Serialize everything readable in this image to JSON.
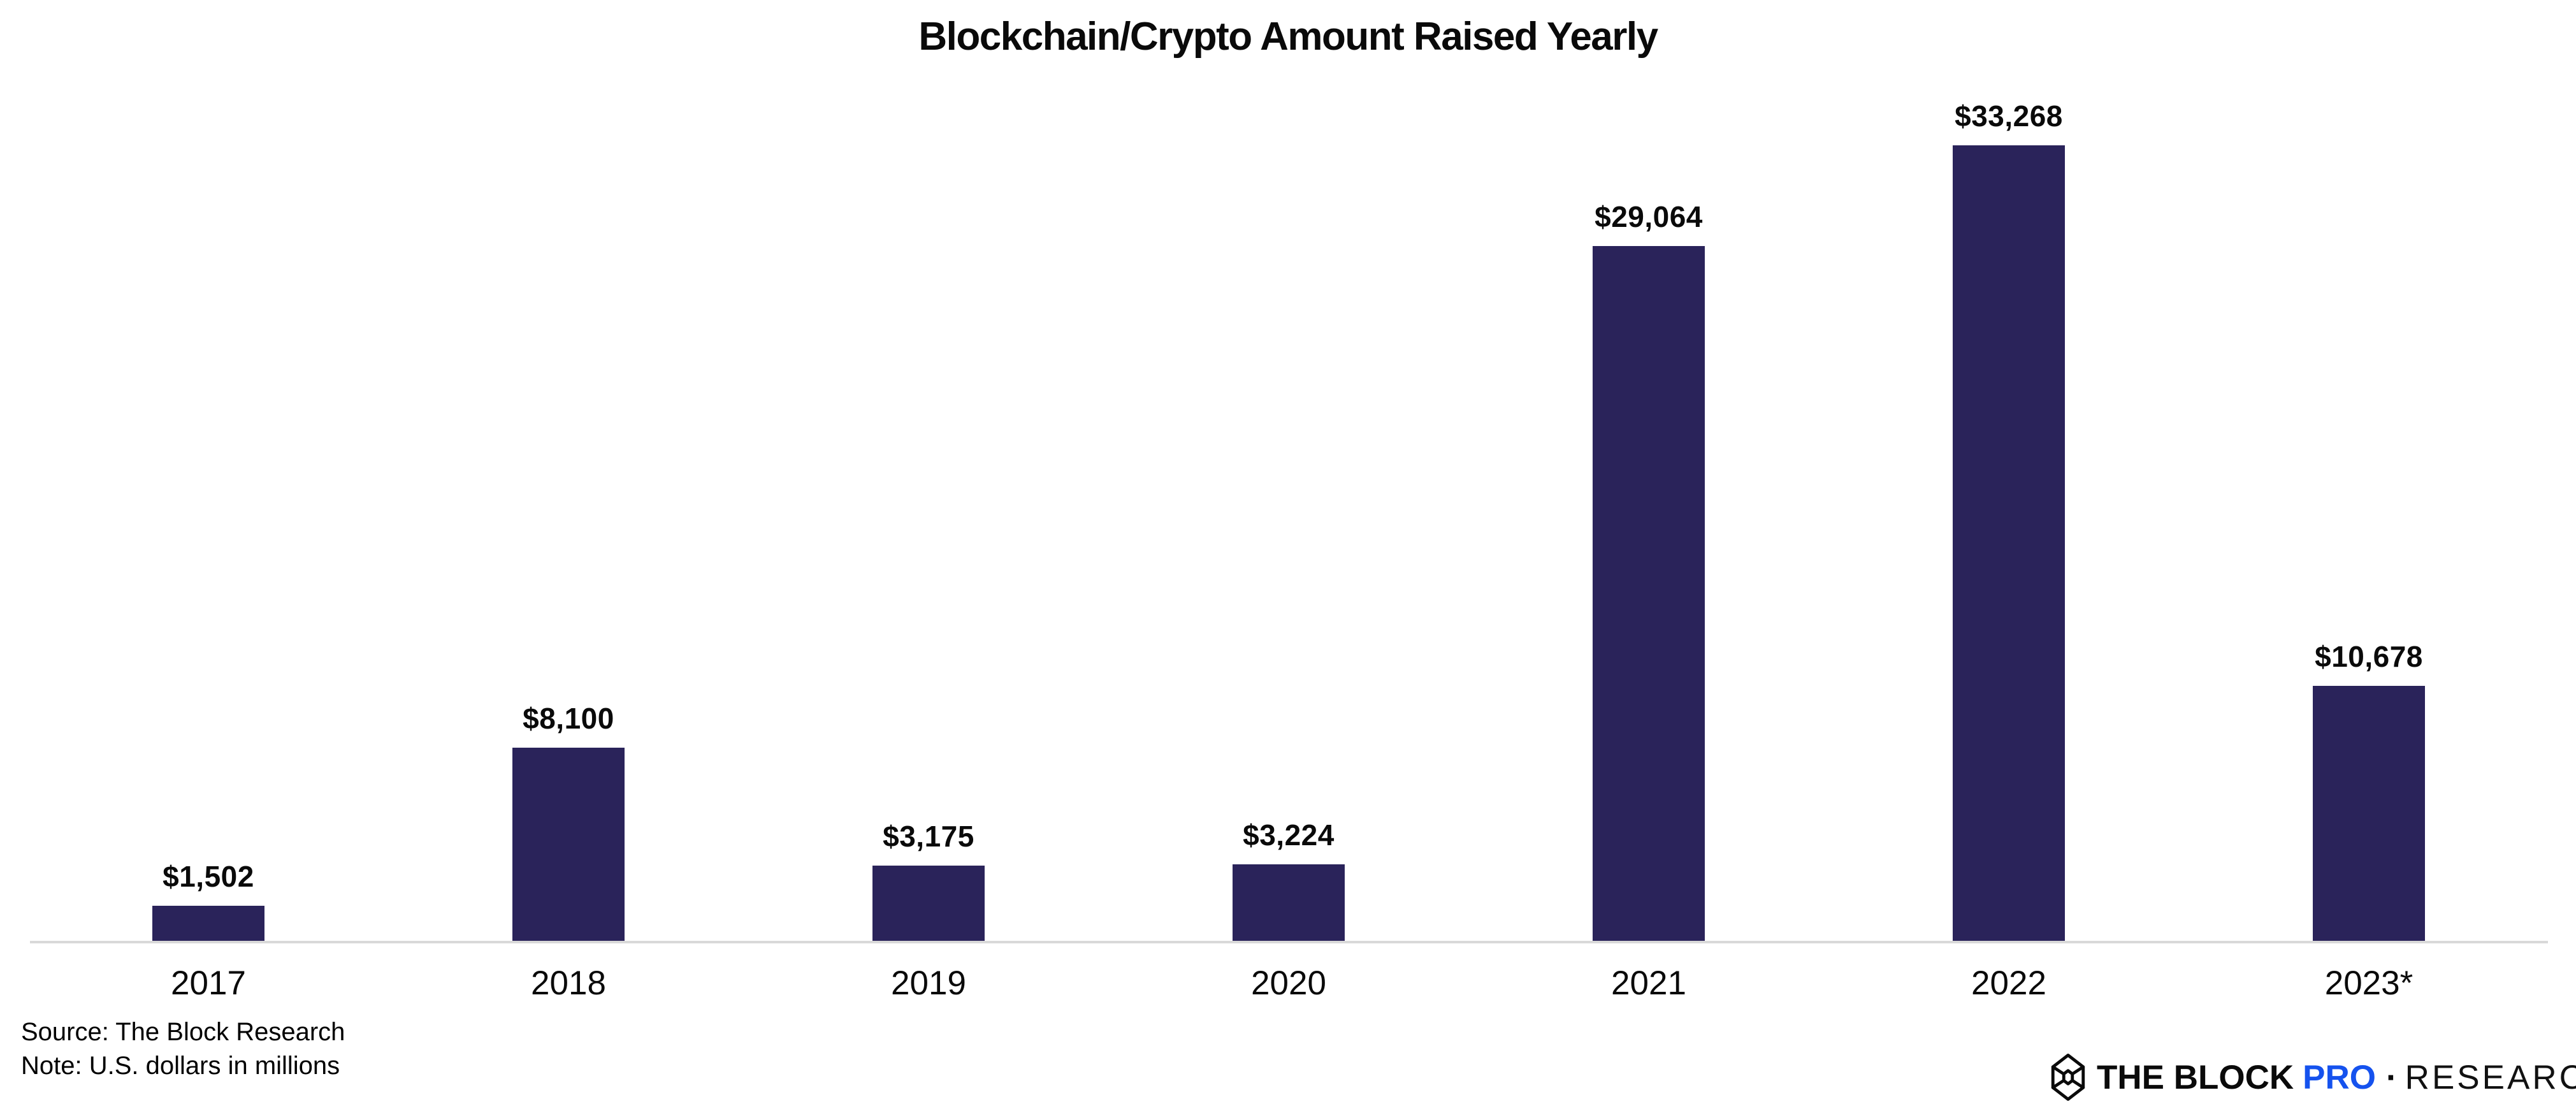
{
  "title": "Blockchain/Crypto Amount Raised Yearly",
  "chart_data": {
    "type": "bar",
    "title": "Blockchain/Crypto Amount Raised Yearly",
    "categories": [
      "2017",
      "2018",
      "2019",
      "2020",
      "2021",
      "2022",
      "2023*"
    ],
    "values": [
      1502,
      8100,
      3175,
      3224,
      29064,
      33268,
      10678
    ],
    "value_labels": [
      "$1,502",
      "$8,100",
      "$3,175",
      "$3,224",
      "$29,064",
      "$33,268",
      "$10,678"
    ],
    "xlabel": "",
    "ylabel": "",
    "ylim": [
      0,
      35000
    ],
    "grid": false,
    "legend": false,
    "bar_color": "#2a235a",
    "data_label_position": "above-bar"
  },
  "footnotes": {
    "source": "Source: The Block Research",
    "note": "Note: U.S. dollars in millions"
  },
  "logo": {
    "icon": "the-block-cube-icon",
    "brand": "THE BLOCK",
    "tier": "PRO",
    "separator": "·",
    "division": "RESEARCH",
    "tier_color": "#1552ee"
  },
  "colors": {
    "bar": "#2a235a",
    "axis_line": "#d9d9d9",
    "background": "#ffffff",
    "text": "#000000"
  }
}
